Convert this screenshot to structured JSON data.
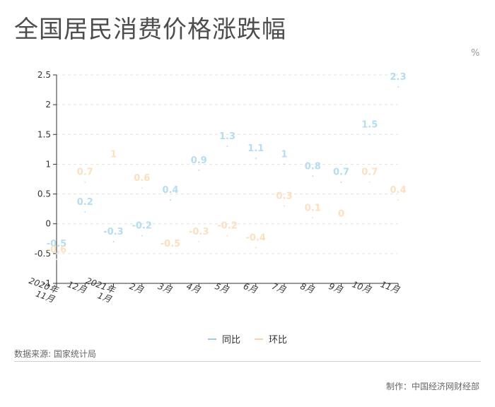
{
  "page": {
    "title": "全国居民消费价格涨跌幅",
    "unit": "%",
    "source": "数据来源: 国家统计局",
    "credit": "制作：中国经济网财经部"
  },
  "chart_data": {
    "type": "scatter",
    "title": "全国居民消费价格涨跌幅",
    "ylabel": "%",
    "categories": [
      "2020年11月",
      "12月",
      "2021年1月",
      "2月",
      "3月",
      "4月",
      "5月",
      "6月",
      "7月",
      "8月",
      "9月",
      "10月",
      "11月"
    ],
    "ylim": [
      -1,
      2.5
    ],
    "yticks": [
      2.5,
      2,
      1.5,
      1,
      0.5,
      0,
      -0.5,
      -1
    ],
    "grid": true,
    "legend_position": "bottom",
    "series": [
      {
        "name": "同比",
        "color": "#b5ddf0",
        "values": [
          -0.5,
          0.2,
          -0.3,
          -0.2,
          0.4,
          0.9,
          1.3,
          1.1,
          1,
          0.8,
          0.7,
          1.5,
          2.3
        ]
      },
      {
        "name": "环比",
        "color": "#fbe0bf",
        "values": [
          -0.6,
          0.7,
          1,
          0.6,
          -0.5,
          -0.3,
          -0.2,
          -0.4,
          0.3,
          0.1,
          0,
          0.7,
          0.4
        ]
      }
    ]
  }
}
